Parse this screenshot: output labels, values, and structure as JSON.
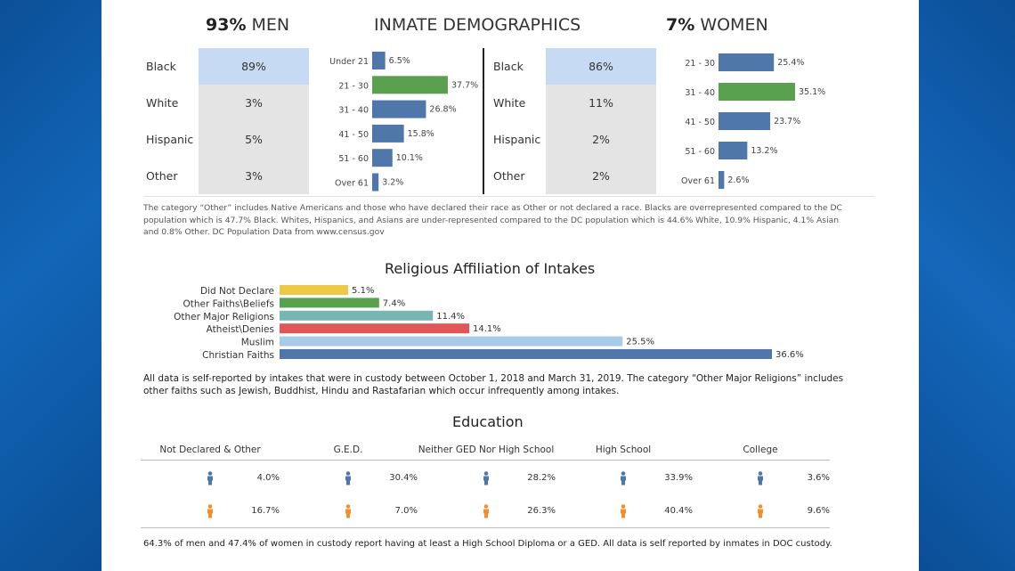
{
  "colors": {
    "blue": "#4f77aa",
    "green": "#59a14f",
    "yellow": "#edc948",
    "teal": "#76b7b2",
    "red": "#e15759",
    "lightblue": "#a8cbe8",
    "highlight": "#c6dbf3",
    "grey": "#e4e4e4",
    "male_icon": "#4f77aa",
    "female_icon": "#f28e2b"
  },
  "header": {
    "men_pct": "93%",
    "men_label": "MEN",
    "title": "INMATE DEMOGRAPHICS",
    "women_pct": "7%",
    "women_label": "WOMEN"
  },
  "men_race": [
    {
      "label": "Black",
      "value": "89%"
    },
    {
      "label": "White",
      "value": "3%"
    },
    {
      "label": "Hispanic",
      "value": "5%"
    },
    {
      "label": "Other",
      "value": "3%"
    }
  ],
  "women_race": [
    {
      "label": "Black",
      "value": "86%"
    },
    {
      "label": "White",
      "value": "11%"
    },
    {
      "label": "Hispanic",
      "value": "2%"
    },
    {
      "label": "Other",
      "value": "2%"
    }
  ],
  "race_note": "The category “Other” includes Native Americans and those who have declared their race as Other or not declared a race. Blacks are overrepresented compared to the DC population which is 47.7% Black. Whites, Hispanics, and Asians are under-represented compared to the DC population which is 44.6% White, 10.9% Hispanic, 4.1% Asian and 0.8% Other.   DC Population Data from www.census.gov",
  "religion_note": "All data is self-reported by intakes  that were in custody between October 1, 2018 and March 31, 2019. The category “Other Major Religions” includes other faiths such as Jewish, Buddhist, Hindu and Rastafarian which occur infrequently among intakes.",
  "education_note": "64.3% of men and 47.4% of women in custody report having at least a High  School Diploma or a GED.  All data is self reported by inmates in DOC custody.",
  "chart_data": [
    {
      "type": "bar",
      "title": "",
      "orientation": "horizontal",
      "categories": [
        "Under 21",
        "21 - 30",
        "31 - 40",
        "41 - 50",
        "51 - 60",
        "Over 61"
      ],
      "values": [
        6.5,
        37.7,
        26.8,
        15.8,
        10.1,
        3.2
      ],
      "labels": [
        "6.5%",
        "37.7%",
        "26.8%",
        "15.8%",
        "10.1%",
        "3.2%"
      ],
      "highlight_index": 1
    },
    {
      "type": "bar",
      "title": "",
      "orientation": "horizontal",
      "categories": [
        "21 - 30",
        "31 - 40",
        "41 - 50",
        "51 - 60",
        "Over 61"
      ],
      "values": [
        25.4,
        35.1,
        23.7,
        13.2,
        2.6
      ],
      "labels": [
        "25.4%",
        "35.1%",
        "23.7%",
        "13.2%",
        "2.6%"
      ],
      "highlight_index": 1
    },
    {
      "type": "bar",
      "title": "Religious Affiliation of Intakes",
      "orientation": "horizontal",
      "categories": [
        "Did Not Declare",
        "Other Faiths\\Beliefs",
        "Other Major Religions",
        "Atheist\\Denies",
        "Muslim",
        "Christian Faiths"
      ],
      "values": [
        5.1,
        7.4,
        11.4,
        14.1,
        25.5,
        36.6
      ],
      "labels": [
        "5.1%",
        "7.4%",
        "11.4%",
        "14.1%",
        "25.5%",
        "36.6%"
      ],
      "bar_colors": [
        "#edc948",
        "#59a14f",
        "#76b7b2",
        "#e15759",
        "#a8cbe8",
        "#4f77aa"
      ]
    },
    {
      "type": "table",
      "title": "Education",
      "categories": [
        "Not Declared & Other",
        "G.E.D.",
        "Neither GED Nor High School",
        "High School",
        "College"
      ],
      "series": [
        {
          "values": [
            4.0,
            30.4,
            28.2,
            33.9,
            3.6
          ],
          "labels": [
            "4.0%",
            "30.4%",
            "28.2%",
            "33.9%",
            "3.6%"
          ]
        },
        {
          "values": [
            16.7,
            7.0,
            26.3,
            40.4,
            9.6
          ],
          "labels": [
            "16.7%",
            "7.0%",
            "26.3%",
            "40.4%",
            "9.6%"
          ]
        }
      ]
    }
  ]
}
